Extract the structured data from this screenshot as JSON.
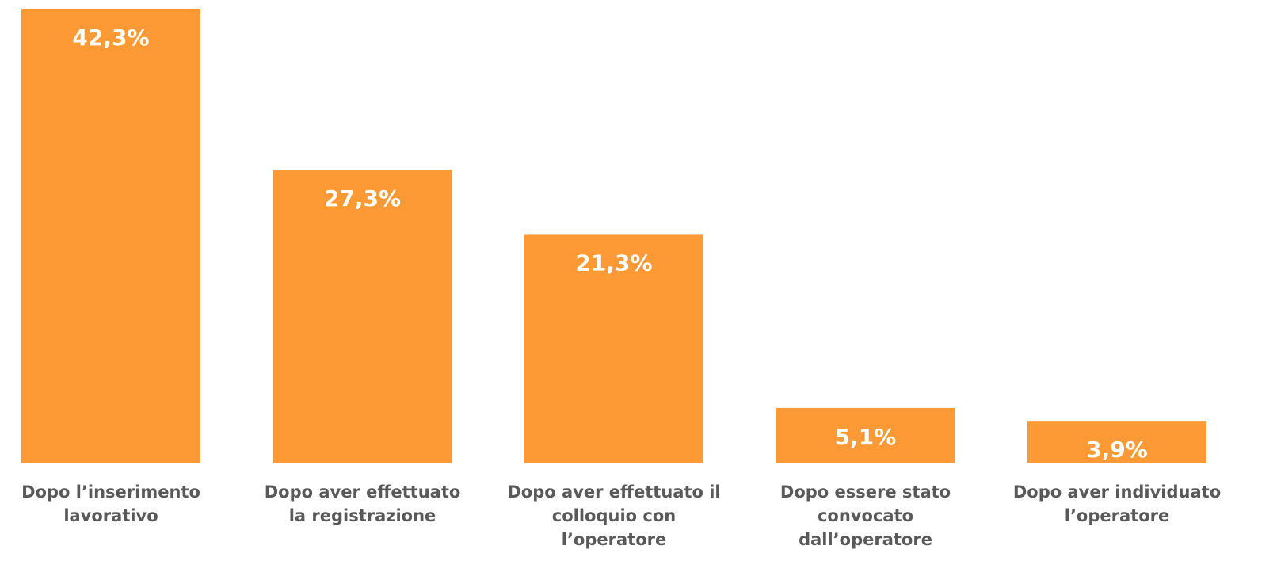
{
  "chart_data": {
    "type": "bar",
    "categories": [
      "Dopo l’inserimento\nlavorativo",
      "Dopo aver effettuato\nla registrazione",
      "Dopo aver effettuato il\ncolloquio con\nl’operatore",
      "Dopo essere stato\nconvocato\ndall’operatore",
      "Dopo aver individuato\nl’operatore"
    ],
    "values": [
      42.3,
      27.3,
      21.3,
      5.1,
      3.9
    ],
    "value_labels": [
      "42,3%",
      "27,3%",
      "21,3%",
      "5,1%",
      "3,9%"
    ],
    "color": "#fd9a35",
    "grid": false
  }
}
